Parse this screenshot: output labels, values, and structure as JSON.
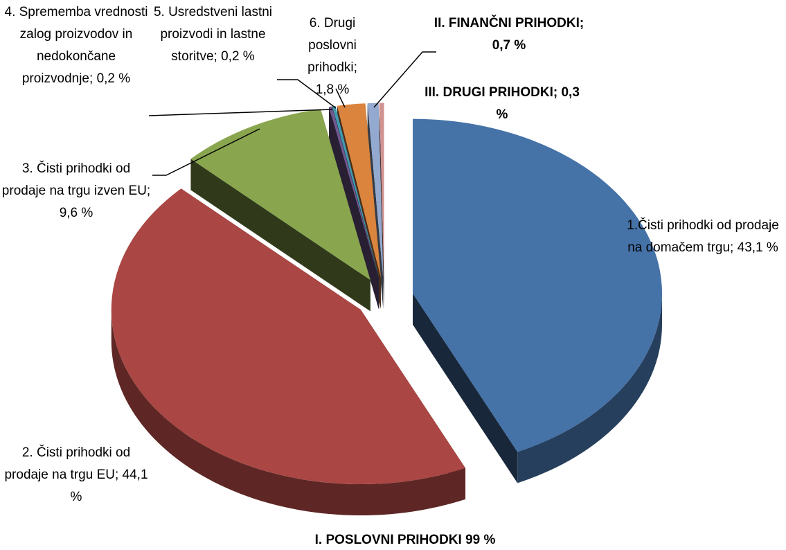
{
  "chart_data": {
    "type": "pie3d",
    "categories": [
      "1.Čisti prihodki od prodaje na domačem trgu;",
      "2. Čisti prihodki od prodaje na trgu EU;",
      "3. Čisti prihodki od prodaje na trgu izven EU;",
      "4. Sprememba vrednosti zalog proizvodov in nedokončane proizvodnje;",
      "5. Usredstveni lastni proizvodi in lastne storitve;",
      "6. Drugi poslovni prihodki;",
      "II. FINANČNI PRIHODKI;",
      "III. DRUGI PRIHODKI;"
    ],
    "values": [
      43.1,
      44.1,
      9.6,
      0.2,
      0.2,
      1.8,
      0.7,
      0.3
    ],
    "value_labels": [
      "43,1 %",
      "44,1 %",
      "9,6 %",
      "0,2 %",
      "0,2 %",
      "1,8 %",
      "0,7 %",
      "0,3 %"
    ],
    "colors": [
      "#4572a7",
      "#aa4643",
      "#89a54e",
      "#71588f",
      "#4198af",
      "#db843d",
      "#93a9cf",
      "#d19392"
    ],
    "annotation": "I. POSLOVNI PRIHODKI 99 %"
  }
}
